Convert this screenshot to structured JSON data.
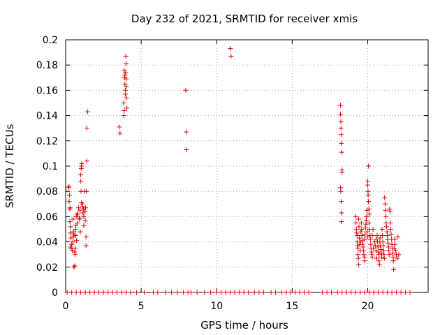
{
  "chart_data": {
    "type": "scatter",
    "title": "Day 232 of 2021, SRMTID for receiver xmis",
    "xlabel": "GPS time / hours",
    "ylabel": "SRMTID / TECUs",
    "xlim": [
      0,
      24
    ],
    "ylim": [
      0,
      0.2
    ],
    "xticks": [
      0,
      5,
      10,
      15,
      20
    ],
    "xtick_labels": [
      "0",
      "5",
      "10",
      "15",
      "20"
    ],
    "yticks": [
      0,
      0.02,
      0.04,
      0.06,
      0.08,
      0.1,
      0.12,
      0.14,
      0.16,
      0.18,
      0.2
    ],
    "ytick_labels": [
      "0",
      "0.02",
      "0.04",
      "0.06",
      "0.08",
      "0.1",
      "0.12",
      "0.14",
      "0.16",
      "0.18",
      "0.2"
    ],
    "grid": true,
    "marker": "+",
    "color": "#e00000",
    "series": [
      {
        "name": "SRMTID",
        "points": [
          [
            0.2,
            0.083
          ],
          [
            0.22,
            0.084
          ],
          [
            0.25,
            0.077
          ],
          [
            0.23,
            0.072
          ],
          [
            0.27,
            0.066
          ],
          [
            0.3,
            0.067
          ],
          [
            0.28,
            0.056
          ],
          [
            0.32,
            0.052
          ],
          [
            0.3,
            0.047
          ],
          [
            0.35,
            0.043
          ],
          [
            0.33,
            0.036
          ],
          [
            0.37,
            0.035
          ],
          [
            0.4,
            0.038
          ],
          [
            0.45,
            0.033
          ],
          [
            0.48,
            0.04
          ],
          [
            0.5,
            0.044
          ],
          [
            0.5,
            0.058
          ],
          [
            0.52,
            0.048
          ],
          [
            0.55,
            0.046
          ],
          [
            0.55,
            0.02
          ],
          [
            0.6,
            0.021
          ],
          [
            0.6,
            0.032
          ],
          [
            0.62,
            0.03
          ],
          [
            0.63,
            0.035
          ],
          [
            0.65,
            0.05
          ],
          [
            0.65,
            0.045
          ],
          [
            0.68,
            0.053
          ],
          [
            0.7,
            0.06
          ],
          [
            0.72,
            0.041
          ],
          [
            0.75,
            0.062
          ],
          [
            0.78,
            0.055
          ],
          [
            0.8,
            0.062
          ],
          [
            0.85,
            0.067
          ],
          [
            0.9,
            0.059
          ],
          [
            0.92,
            0.058
          ],
          [
            0.95,
            0.065
          ],
          [
            0.97,
            0.048
          ],
          [
            1.0,
            0.093
          ],
          [
            1.0,
            0.088
          ],
          [
            1.02,
            0.08
          ],
          [
            1.03,
            0.098
          ],
          [
            1.05,
            0.1
          ],
          [
            1.07,
            0.102
          ],
          [
            1.05,
            0.071
          ],
          [
            1.1,
            0.07
          ],
          [
            1.12,
            0.068
          ],
          [
            1.15,
            0.063
          ],
          [
            1.18,
            0.066
          ],
          [
            1.2,
            0.06
          ],
          [
            1.2,
            0.053
          ],
          [
            1.25,
            0.08
          ],
          [
            1.28,
            0.064
          ],
          [
            1.3,
            0.057
          ],
          [
            1.32,
            0.067
          ],
          [
            1.35,
            0.044
          ],
          [
            1.35,
            0.037
          ],
          [
            1.38,
            0.08
          ],
          [
            1.4,
            0.104
          ],
          [
            1.4,
            0.13
          ],
          [
            1.45,
            0.143
          ],
          [
            3.55,
            0.131
          ],
          [
            3.6,
            0.126
          ],
          [
            3.85,
            0.15
          ],
          [
            3.85,
            0.14
          ],
          [
            3.88,
            0.144
          ],
          [
            3.9,
            0.17
          ],
          [
            3.88,
            0.176
          ],
          [
            3.92,
            0.165
          ],
          [
            3.92,
            0.172
          ],
          [
            3.95,
            0.16
          ],
          [
            3.95,
            0.157
          ],
          [
            3.97,
            0.174
          ],
          [
            3.98,
            0.187
          ],
          [
            4.0,
            0.181
          ],
          [
            4.0,
            0.169
          ],
          [
            4.02,
            0.163
          ],
          [
            4.02,
            0.154
          ],
          [
            4.05,
            0.146
          ],
          [
            7.95,
            0.16
          ],
          [
            7.98,
            0.127
          ],
          [
            8.0,
            0.113
          ],
          [
            10.9,
            0.193
          ],
          [
            10.95,
            0.187
          ],
          [
            18.2,
            0.148
          ],
          [
            18.2,
            0.141
          ],
          [
            18.22,
            0.135
          ],
          [
            18.23,
            0.13
          ],
          [
            18.24,
            0.125
          ],
          [
            18.25,
            0.118
          ],
          [
            18.28,
            0.111
          ],
          [
            18.3,
            0.097
          ],
          [
            18.3,
            0.095
          ],
          [
            18.2,
            0.083
          ],
          [
            18.22,
            0.08
          ],
          [
            18.25,
            0.072
          ],
          [
            18.27,
            0.063
          ],
          [
            18.25,
            0.056
          ],
          [
            19.2,
            0.06
          ],
          [
            19.22,
            0.055
          ],
          [
            19.25,
            0.05
          ],
          [
            19.27,
            0.047
          ],
          [
            19.3,
            0.045
          ],
          [
            19.3,
            0.04
          ],
          [
            19.32,
            0.037
          ],
          [
            19.35,
            0.035
          ],
          [
            19.35,
            0.03
          ],
          [
            19.38,
            0.027
          ],
          [
            19.4,
            0.022
          ],
          [
            19.4,
            0.058
          ],
          [
            19.42,
            0.052
          ],
          [
            19.45,
            0.043
          ],
          [
            19.47,
            0.038
          ],
          [
            19.5,
            0.033
          ],
          [
            19.52,
            0.04
          ],
          [
            19.55,
            0.048
          ],
          [
            19.58,
            0.055
          ],
          [
            19.6,
            0.05
          ],
          [
            19.62,
            0.045
          ],
          [
            19.65,
            0.041
          ],
          [
            19.68,
            0.038
          ],
          [
            19.7,
            0.036
          ],
          [
            19.72,
            0.033
          ],
          [
            19.75,
            0.03
          ],
          [
            19.78,
            0.028
          ],
          [
            19.8,
            0.025
          ],
          [
            19.8,
            0.042
          ],
          [
            19.82,
            0.046
          ],
          [
            19.85,
            0.051
          ],
          [
            19.88,
            0.054
          ],
          [
            19.9,
            0.057
          ],
          [
            19.92,
            0.06
          ],
          [
            19.95,
            0.065
          ],
          [
            19.95,
            0.048
          ],
          [
            19.98,
            0.044
          ],
          [
            20.0,
            0.085
          ],
          [
            20.0,
            0.088
          ],
          [
            20.02,
            0.08
          ],
          [
            20.03,
            0.077
          ],
          [
            20.05,
            0.1
          ],
          [
            20.05,
            0.072
          ],
          [
            20.08,
            0.066
          ],
          [
            20.1,
            0.062
          ],
          [
            20.1,
            0.055
          ],
          [
            20.12,
            0.05
          ],
          [
            20.15,
            0.045
          ],
          [
            20.18,
            0.042
          ],
          [
            20.2,
            0.038
          ],
          [
            20.22,
            0.035
          ],
          [
            20.25,
            0.032
          ],
          [
            20.28,
            0.03
          ],
          [
            20.3,
            0.028
          ],
          [
            20.3,
            0.045
          ],
          [
            20.35,
            0.05
          ],
          [
            20.38,
            0.035
          ],
          [
            20.45,
            0.04
          ],
          [
            20.5,
            0.037
          ],
          [
            20.55,
            0.042
          ],
          [
            20.55,
            0.033
          ],
          [
            20.6,
            0.027
          ],
          [
            20.62,
            0.045
          ],
          [
            20.65,
            0.04
          ],
          [
            20.68,
            0.036
          ],
          [
            20.7,
            0.032
          ],
          [
            20.72,
            0.03
          ],
          [
            20.75,
            0.025
          ],
          [
            20.78,
            0.022
          ],
          [
            20.8,
            0.04
          ],
          [
            20.82,
            0.043
          ],
          [
            20.85,
            0.037
          ],
          [
            20.88,
            0.034
          ],
          [
            20.9,
            0.031
          ],
          [
            20.92,
            0.028
          ],
          [
            20.95,
            0.05
          ],
          [
            20.98,
            0.045
          ],
          [
            21.0,
            0.04
          ],
          [
            21.02,
            0.037
          ],
          [
            21.05,
            0.033
          ],
          [
            21.08,
            0.03
          ],
          [
            21.1,
            0.027
          ],
          [
            21.12,
            0.075
          ],
          [
            21.15,
            0.07
          ],
          [
            21.18,
            0.065
          ],
          [
            21.2,
            0.06
          ],
          [
            21.22,
            0.055
          ],
          [
            21.25,
            0.052
          ],
          [
            21.28,
            0.048
          ],
          [
            21.3,
            0.045
          ],
          [
            21.32,
            0.042
          ],
          [
            21.35,
            0.039
          ],
          [
            21.38,
            0.036
          ],
          [
            21.4,
            0.033
          ],
          [
            21.42,
            0.03
          ],
          [
            21.45,
            0.066
          ],
          [
            21.48,
            0.064
          ],
          [
            21.5,
            0.055
          ],
          [
            21.52,
            0.05
          ],
          [
            21.55,
            0.046
          ],
          [
            21.58,
            0.042
          ],
          [
            21.6,
            0.038
          ],
          [
            21.62,
            0.035
          ],
          [
            21.65,
            0.031
          ],
          [
            21.68,
            0.028
          ],
          [
            21.7,
            0.025
          ],
          [
            21.72,
            0.018
          ],
          [
            21.75,
            0.035
          ],
          [
            21.78,
            0.042
          ],
          [
            21.8,
            0.038
          ],
          [
            21.85,
            0.033
          ],
          [
            21.9,
            0.03
          ],
          [
            21.95,
            0.027
          ],
          [
            22.0,
            0.044
          ],
          [
            22.05,
            0.03
          ],
          [
            0.1,
            0
          ],
          [
            0.4,
            0
          ],
          [
            0.7,
            0
          ],
          [
            1.0,
            0
          ],
          [
            1.3,
            0
          ],
          [
            1.6,
            0
          ],
          [
            1.9,
            0
          ],
          [
            2.2,
            0
          ],
          [
            2.5,
            0
          ],
          [
            2.8,
            0
          ],
          [
            3.1,
            0
          ],
          [
            3.4,
            0
          ],
          [
            3.7,
            0
          ],
          [
            4.0,
            0
          ],
          [
            4.3,
            0
          ],
          [
            4.7,
            0
          ],
          [
            5.2,
            0
          ],
          [
            5.8,
            0
          ],
          [
            6.1,
            0
          ],
          [
            6.6,
            0
          ],
          [
            7.0,
            0
          ],
          [
            7.4,
            0
          ],
          [
            7.8,
            0
          ],
          [
            8.1,
            0
          ],
          [
            8.3,
            0
          ],
          [
            8.7,
            0
          ],
          [
            9.2,
            0
          ],
          [
            9.6,
            0
          ],
          [
            10.0,
            0
          ],
          [
            10.3,
            0
          ],
          [
            10.6,
            0
          ],
          [
            10.9,
            0
          ],
          [
            11.2,
            0
          ],
          [
            11.5,
            0
          ],
          [
            11.8,
            0
          ],
          [
            12.1,
            0
          ],
          [
            12.5,
            0
          ],
          [
            12.8,
            0
          ],
          [
            13.1,
            0
          ],
          [
            13.6,
            0
          ],
          [
            13.9,
            0
          ],
          [
            14.3,
            0
          ],
          [
            14.6,
            0
          ],
          [
            14.9,
            0
          ],
          [
            15.2,
            0
          ],
          [
            15.5,
            0
          ],
          [
            15.8,
            0
          ],
          [
            16.1,
            0
          ],
          [
            17.0,
            0
          ],
          [
            17.3,
            0
          ],
          [
            17.6,
            0
          ],
          [
            18.0,
            0
          ],
          [
            18.3,
            0
          ],
          [
            18.6,
            0
          ],
          [
            18.9,
            0
          ],
          [
            19.2,
            0
          ],
          [
            19.5,
            0
          ],
          [
            19.8,
            0
          ],
          [
            20.1,
            0
          ],
          [
            20.4,
            0
          ],
          [
            20.7,
            0
          ],
          [
            21.0,
            0
          ],
          [
            21.3,
            0
          ],
          [
            21.6,
            0
          ],
          [
            21.9,
            0
          ],
          [
            22.2,
            0
          ],
          [
            22.5,
            0
          ],
          [
            22.8,
            0
          ]
        ]
      }
    ]
  }
}
